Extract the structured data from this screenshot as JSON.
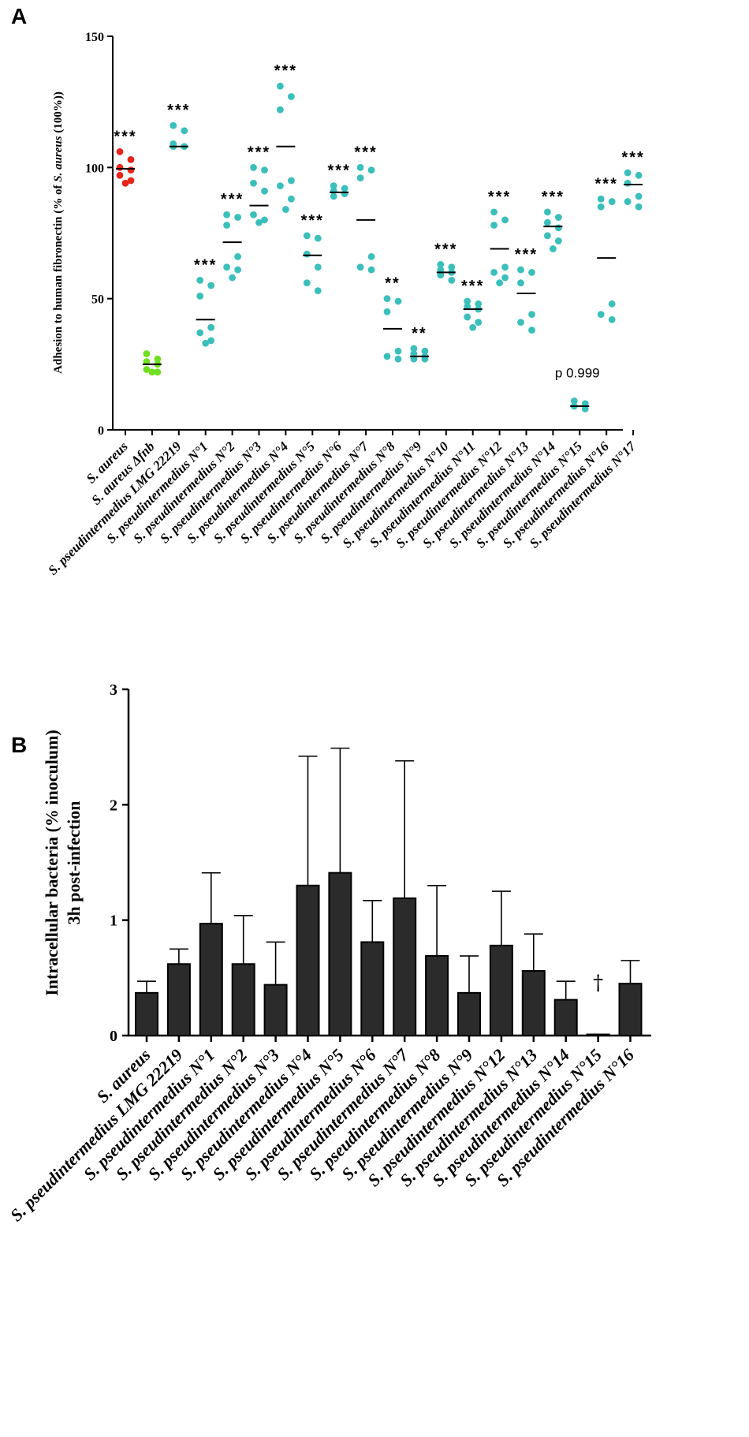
{
  "panel_labels": {
    "a": "A",
    "b": "B"
  },
  "colors": {
    "red": "#e8251b",
    "green": "#6fe01f",
    "teal": "#3bbfbb",
    "bar": "#2b2b2b"
  },
  "chart_data": [
    {
      "type": "scatter",
      "title": "",
      "panel": "A",
      "ylabel_main": "Adhesion to human fibronectin (% of ",
      "ylabel_italic": "S. aureus",
      "ylabel_tail": " (100%))",
      "ylim": [
        0,
        150
      ],
      "yticks": [
        0,
        50,
        100,
        150
      ],
      "categories": [
        "S. aureus",
        "S. aureus Δfnb",
        "S. pseudintermedius LMG 22219",
        "S. pseudintermedius N°1",
        "S. pseudintermedius N°2",
        "S. pseudintermedius N°3",
        "S. pseudintermedius N°4",
        "S. pseudintermedius N°5",
        "S. pseudintermedius N°6",
        "S. pseudintermedius N°7",
        "S. pseudintermedius N°8",
        "S. pseudintermedius N°9",
        "S. pseudintermedius N°10",
        "S. pseudintermedius N°11",
        "S. pseudintermedius N°12",
        "S. pseudintermedius N°13",
        "S. pseudintermedius N°14",
        "S. pseudintermedius N°15",
        "S. pseudintermedius N°16",
        "S. pseudintermedius N°17"
      ],
      "point_colors": [
        "red",
        "green",
        "teal",
        "teal",
        "teal",
        "teal",
        "teal",
        "teal",
        "teal",
        "teal",
        "teal",
        "teal",
        "teal",
        "teal",
        "teal",
        "teal",
        "teal",
        "teal",
        "teal",
        "teal"
      ],
      "points": [
        [
          106,
          103,
          100,
          99,
          97,
          95,
          94
        ],
        [
          29,
          27,
          26,
          25,
          23,
          22,
          22
        ],
        [
          116,
          114,
          109,
          108,
          108
        ],
        [
          57,
          55,
          51,
          39,
          37,
          34,
          33
        ],
        [
          82,
          81,
          78,
          66,
          62,
          61,
          58
        ],
        [
          100,
          99,
          94,
          91,
          82,
          80,
          79
        ],
        [
          131,
          127,
          122,
          95,
          93,
          88,
          84
        ],
        [
          74,
          73,
          67,
          62,
          56,
          53
        ],
        [
          93,
          92,
          91,
          90,
          89
        ],
        [
          100,
          99,
          96,
          66,
          62,
          61
        ],
        [
          50,
          49,
          45,
          30,
          28,
          27
        ],
        [
          31,
          30,
          29,
          28,
          27,
          27
        ],
        [
          63,
          62,
          61,
          60,
          59,
          57
        ],
        [
          49,
          48,
          47,
          46,
          43,
          41,
          39
        ],
        [
          83,
          80,
          78,
          62,
          60,
          58,
          56
        ],
        [
          61,
          60,
          56,
          44,
          41,
          38
        ],
        [
          83,
          81,
          79,
          77,
          74,
          72,
          69
        ],
        [
          11,
          10,
          9,
          8
        ],
        [
          88,
          87,
          85,
          48,
          44,
          42
        ],
        [
          98,
          97,
          94,
          89,
          87,
          85
        ]
      ],
      "means": [
        99.5,
        25,
        108,
        42,
        71.5,
        85.5,
        108,
        66.5,
        90.5,
        80,
        38.5,
        28,
        60,
        46,
        69,
        52,
        77.5,
        9,
        65.5,
        93.5
      ],
      "significance": [
        "***",
        "",
        "***",
        "***",
        "***",
        "***",
        "***",
        "***",
        "***",
        "***",
        "**",
        "**",
        "***",
        "***",
        "***",
        "***",
        "***",
        "",
        "***",
        "***"
      ],
      "annotation": "p 0.999",
      "annotation_category_index": 17
    },
    {
      "type": "bar",
      "title": "",
      "panel": "B",
      "ylabel_line1": "Intracellular bacteria (% inoculum)",
      "ylabel_line2": "3h post-infection",
      "ylim": [
        0,
        3
      ],
      "yticks": [
        0,
        1,
        2,
        3
      ],
      "categories": [
        "S. aureus",
        "S. pseudintermedius LMG 22219",
        "S. pseudintermedius N°1",
        "S. pseudintermedius N°2",
        "S. pseudintermedius N°3",
        "S. pseudintermedius N°4",
        "S. pseudintermedius N°5",
        "S. pseudintermedius N°6",
        "S. pseudintermedius N°7",
        "S. pseudintermedius N°8",
        "S. pseudintermedius N°9",
        "S. pseudintermedius N°12",
        "S. pseudintermedius N°13",
        "S. pseudintermedius N°14",
        "S. pseudintermedius N°15",
        "S. pseudintermedius N°16"
      ],
      "values": [
        0.37,
        0.62,
        0.97,
        0.62,
        0.44,
        1.3,
        1.41,
        0.81,
        1.19,
        0.69,
        0.37,
        0.78,
        0.56,
        0.31,
        0.01,
        0.45
      ],
      "error_upper": [
        0.47,
        0.75,
        1.41,
        1.04,
        0.81,
        2.42,
        2.49,
        1.17,
        2.38,
        1.3,
        0.69,
        1.25,
        0.88,
        0.47,
        0.01,
        0.65
      ],
      "dagger_symbol": "†",
      "dagger_category_index": 14
    }
  ]
}
